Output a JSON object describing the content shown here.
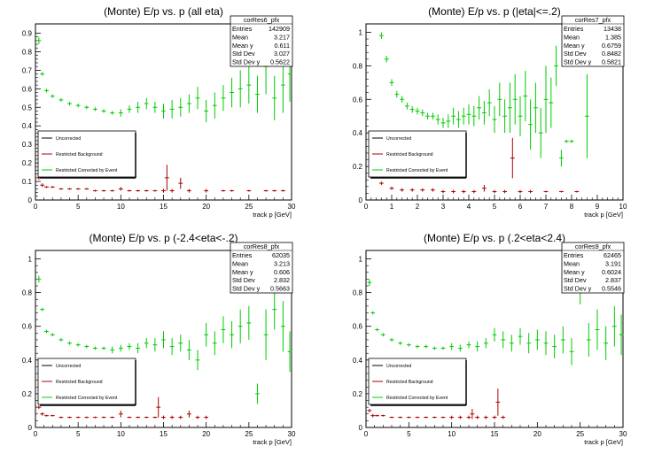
{
  "chart_data": [
    {
      "type": "scatter",
      "title": "(Monte) E/p vs. p (all eta)",
      "xlabel": "track p [GeV]",
      "xlim": [
        0,
        30
      ],
      "ylim": [
        0,
        0.95
      ],
      "xticks": [
        0,
        5,
        10,
        15,
        20,
        25,
        30
      ],
      "yticks": [
        0,
        0.1,
        0.2,
        0.3,
        0.4,
        0.5,
        0.6,
        0.7,
        0.8,
        0.9
      ],
      "ytick_labels": [
        "0",
        "0.1",
        "0.2",
        "0.3",
        "0.4",
        "0.5",
        "0.6",
        "0.7",
        "0.8",
        "0.9"
      ],
      "stats": {
        "name": "corRes6_pfx",
        "rows": [
          {
            "label": "Entries",
            "value": "142909"
          },
          {
            "label": "Mean",
            "value": "3.217"
          },
          {
            "label": "Mean y",
            "value": "0.611"
          },
          {
            "label": "Std Dev",
            "value": "3.027"
          },
          {
            "label": "Std Dev y",
            "value": "0.5622"
          }
        ]
      },
      "legend": [
        "Uncorrected",
        "Restricted Background",
        "Restricted Corrected by Event"
      ],
      "colors": {
        "uncorrected": "#000000",
        "background": "#aa0000",
        "corrected": "#00cc00"
      },
      "series": [
        {
          "name": "Restricted Corrected by Event",
          "color": "#00cc00",
          "x": [
            0.4,
            0.8,
            1.3,
            2.0,
            3.0,
            4.0,
            5.0,
            6.0,
            7.0,
            8.0,
            9.0,
            10.0,
            11.0,
            12.0,
            13.0,
            14.0,
            15.0,
            16.0,
            17.0,
            18.0,
            19.0,
            20.0,
            21.0,
            22.0,
            23.0,
            24.0,
            25.0,
            26.0,
            27.0,
            28.0,
            29.0,
            29.8
          ],
          "y": [
            0.86,
            0.68,
            0.59,
            0.56,
            0.54,
            0.52,
            0.51,
            0.5,
            0.49,
            0.48,
            0.47,
            0.47,
            0.49,
            0.5,
            0.52,
            0.5,
            0.48,
            0.49,
            0.5,
            0.52,
            0.55,
            0.48,
            0.51,
            0.55,
            0.58,
            0.6,
            0.62,
            0.57,
            0.72,
            0.55,
            0.62,
            0.68
          ],
          "err": [
            0.02,
            0.01,
            0.01,
            0.01,
            0.01,
            0.01,
            0.01,
            0.01,
            0.01,
            0.01,
            0.01,
            0.02,
            0.02,
            0.03,
            0.03,
            0.03,
            0.04,
            0.05,
            0.05,
            0.05,
            0.06,
            0.06,
            0.07,
            0.07,
            0.08,
            0.1,
            0.1,
            0.1,
            0.15,
            0.12,
            0.15,
            0.15
          ]
        },
        {
          "name": "Restricted Background",
          "color": "#aa0000",
          "x": [
            0.4,
            0.8,
            1.3,
            2.0,
            3.0,
            4.0,
            5.0,
            6.0,
            7.0,
            8.0,
            9.0,
            10.0,
            11.0,
            12.0,
            13.0,
            14.0,
            15.0,
            15.4,
            16.0,
            17.0,
            18.0,
            20.0,
            22.0,
            23.0,
            25.0,
            27.0,
            28.0,
            29.0
          ],
          "y": [
            0.12,
            0.08,
            0.07,
            0.07,
            0.06,
            0.06,
            0.06,
            0.06,
            0.05,
            0.05,
            0.05,
            0.06,
            0.05,
            0.05,
            0.05,
            0.05,
            0.05,
            0.12,
            0.05,
            0.09,
            0.05,
            0.05,
            0.05,
            0.05,
            0.05,
            0.05,
            0.05,
            0.05
          ],
          "err": [
            0.01,
            0.01,
            0.005,
            0.005,
            0.005,
            0.005,
            0.005,
            0.005,
            0.005,
            0.005,
            0.005,
            0.01,
            0.005,
            0.005,
            0.005,
            0.005,
            0.01,
            0.07,
            0.01,
            0.03,
            0.01,
            0.01,
            0.005,
            0.005,
            0.005,
            0.005,
            0.005,
            0.005
          ]
        }
      ]
    },
    {
      "type": "scatter",
      "title": "(Monte) E/p vs. p (|eta|<=.2)",
      "xlabel": "track p [GeV]",
      "xlim": [
        0,
        10
      ],
      "ylim": [
        0,
        1.05
      ],
      "xticks": [
        0,
        1,
        2,
        3,
        4,
        5,
        6,
        7,
        8,
        9,
        10
      ],
      "yticks": [
        0,
        0.2,
        0.4,
        0.6,
        0.8,
        1.0
      ],
      "ytick_labels": [
        "0",
        "0.2",
        "0.4",
        "0.6",
        "0.8",
        "1"
      ],
      "stats": {
        "name": "corRes7_pfx",
        "rows": [
          {
            "label": "Entries",
            "value": "13438"
          },
          {
            "label": "Mean",
            "value": "1.385"
          },
          {
            "label": "Mean y",
            "value": "0.6759"
          },
          {
            "label": "Std Dev",
            "value": "0.8482"
          },
          {
            "label": "Std Dev y",
            "value": "0.5821"
          }
        ]
      },
      "legend": [
        "Uncorrected",
        "Restricted Background",
        "Restricted Corrected by Event"
      ],
      "colors": {
        "uncorrected": "#000000",
        "background": "#aa0000",
        "corrected": "#00cc00"
      },
      "series": [
        {
          "name": "Restricted Corrected by Event",
          "color": "#00cc00",
          "x": [
            0.6,
            0.8,
            1.0,
            1.2,
            1.4,
            1.6,
            1.8,
            2.0,
            2.2,
            2.4,
            2.6,
            2.8,
            3.0,
            3.2,
            3.4,
            3.6,
            3.8,
            4.0,
            4.2,
            4.4,
            4.6,
            4.8,
            5.0,
            5.2,
            5.4,
            5.6,
            5.8,
            6.0,
            6.2,
            6.4,
            6.6,
            6.8,
            7.0,
            7.2,
            7.4,
            7.6,
            7.8,
            8.0,
            8.6
          ],
          "y": [
            0.98,
            0.84,
            0.7,
            0.63,
            0.6,
            0.56,
            0.54,
            0.53,
            0.52,
            0.5,
            0.5,
            0.48,
            0.46,
            0.47,
            0.5,
            0.48,
            0.5,
            0.51,
            0.5,
            0.55,
            0.52,
            0.58,
            0.48,
            0.6,
            0.5,
            0.55,
            0.6,
            0.5,
            0.62,
            0.45,
            0.55,
            0.4,
            0.6,
            0.58,
            0.8,
            0.25,
            0.35,
            0.35,
            0.5
          ],
          "err": [
            0.02,
            0.02,
            0.02,
            0.02,
            0.02,
            0.02,
            0.02,
            0.02,
            0.02,
            0.02,
            0.02,
            0.03,
            0.03,
            0.04,
            0.05,
            0.05,
            0.05,
            0.06,
            0.06,
            0.07,
            0.07,
            0.08,
            0.08,
            0.1,
            0.1,
            0.15,
            0.15,
            0.12,
            0.15,
            0.15,
            0.15,
            0.15,
            0.2,
            0.15,
            0.12,
            0.05,
            0.01,
            0.01,
            0.25
          ]
        },
        {
          "name": "Restricted Background",
          "color": "#aa0000",
          "x": [
            0.6,
            1.0,
            1.4,
            1.8,
            2.2,
            2.6,
            3.0,
            3.4,
            3.8,
            4.2,
            4.6,
            5.0,
            5.4,
            5.7,
            6.0,
            6.4,
            7.0,
            7.6,
            8.2
          ],
          "y": [
            0.1,
            0.07,
            0.06,
            0.06,
            0.06,
            0.06,
            0.05,
            0.05,
            0.05,
            0.05,
            0.07,
            0.05,
            0.05,
            0.25,
            0.05,
            0.05,
            0.05,
            0.05,
            0.05
          ],
          "err": [
            0.01,
            0.01,
            0.01,
            0.01,
            0.01,
            0.01,
            0.01,
            0.01,
            0.01,
            0.01,
            0.02,
            0.01,
            0.01,
            0.12,
            0.01,
            0.01,
            0.005,
            0.005,
            0.005
          ]
        }
      ]
    },
    {
      "type": "scatter",
      "title": "(Monte) E/p vs. p (-2.4<eta<-.2)",
      "xlabel": "track p [GeV]",
      "xlim": [
        0,
        30
      ],
      "ylim": [
        0,
        1.05
      ],
      "xticks": [
        0,
        5,
        10,
        15,
        20,
        25,
        30
      ],
      "yticks": [
        0,
        0.2,
        0.4,
        0.6,
        0.8,
        1.0
      ],
      "ytick_labels": [
        "0",
        "0.2",
        "0.4",
        "0.6",
        "0.8",
        "1"
      ],
      "stats": {
        "name": "corRes8_pfx",
        "rows": [
          {
            "label": "Entries",
            "value": "62035"
          },
          {
            "label": "Mean",
            "value": "3.213"
          },
          {
            "label": "Mean y",
            "value": "0.606"
          },
          {
            "label": "Std Dev",
            "value": "2.832"
          },
          {
            "label": "Std Dev y",
            "value": "0.5663"
          }
        ]
      },
      "legend": [
        "Uncorrected",
        "Restricted Background",
        "Restricted Corrected by Event"
      ],
      "colors": {
        "uncorrected": "#000000",
        "background": "#aa0000",
        "corrected": "#00cc00"
      },
      "series": [
        {
          "name": "Restricted Corrected by Event",
          "color": "#00cc00",
          "x": [
            0.4,
            0.8,
            1.3,
            2.0,
            3.0,
            4.0,
            5.0,
            6.0,
            7.0,
            8.0,
            9.0,
            10.0,
            11.0,
            12.0,
            13.0,
            14.0,
            15.0,
            16.0,
            17.0,
            18.0,
            19.0,
            20.0,
            21.0,
            22.0,
            23.0,
            24.0,
            25.0,
            26.0,
            27.0,
            28.0,
            29.0,
            29.8
          ],
          "y": [
            0.88,
            0.7,
            0.57,
            0.55,
            0.52,
            0.5,
            0.49,
            0.48,
            0.47,
            0.47,
            0.46,
            0.47,
            0.48,
            0.47,
            0.5,
            0.49,
            0.52,
            0.48,
            0.5,
            0.46,
            0.4,
            0.55,
            0.5,
            0.58,
            0.55,
            0.6,
            0.62,
            0.2,
            0.55,
            0.7,
            0.6,
            0.45
          ],
          "err": [
            0.02,
            0.01,
            0.01,
            0.01,
            0.01,
            0.01,
            0.01,
            0.01,
            0.01,
            0.01,
            0.02,
            0.02,
            0.02,
            0.03,
            0.03,
            0.04,
            0.05,
            0.05,
            0.05,
            0.06,
            0.06,
            0.07,
            0.07,
            0.08,
            0.08,
            0.1,
            0.1,
            0.06,
            0.15,
            0.12,
            0.15,
            0.12
          ]
        },
        {
          "name": "Restricted Background",
          "color": "#aa0000",
          "x": [
            0.4,
            0.8,
            1.3,
            2.0,
            3.0,
            4.0,
            5.0,
            6.0,
            7.0,
            8.0,
            9.0,
            10.0,
            11.0,
            12.0,
            13.0,
            14.0,
            14.4,
            15.0,
            16.0,
            17.0,
            18.0,
            19.0,
            20.0
          ],
          "y": [
            0.12,
            0.08,
            0.07,
            0.07,
            0.06,
            0.06,
            0.06,
            0.06,
            0.06,
            0.06,
            0.06,
            0.08,
            0.06,
            0.06,
            0.06,
            0.06,
            0.12,
            0.06,
            0.06,
            0.06,
            0.08,
            0.06,
            0.06
          ],
          "err": [
            0.01,
            0.01,
            0.005,
            0.005,
            0.005,
            0.005,
            0.005,
            0.005,
            0.005,
            0.005,
            0.005,
            0.02,
            0.005,
            0.005,
            0.005,
            0.005,
            0.06,
            0.01,
            0.01,
            0.01,
            0.02,
            0.01,
            0.01
          ]
        }
      ]
    },
    {
      "type": "scatter",
      "title": "(Monte) E/p vs. p (.2<eta<2.4)",
      "xlabel": "track p [GeV]",
      "xlim": [
        0,
        30
      ],
      "ylim": [
        0,
        1.05
      ],
      "xticks": [
        0,
        5,
        10,
        15,
        20,
        25,
        30
      ],
      "yticks": [
        0,
        0.2,
        0.4,
        0.6,
        0.8,
        1.0
      ],
      "ytick_labels": [
        "0",
        "0.2",
        "0.4",
        "0.6",
        "0.8",
        "1"
      ],
      "stats": {
        "name": "corRes9_pfx",
        "rows": [
          {
            "label": "Entries",
            "value": "62465"
          },
          {
            "label": "Mean",
            "value": "3.191"
          },
          {
            "label": "Mean y",
            "value": "0.6024"
          },
          {
            "label": "Std Dev",
            "value": "2.837"
          },
          {
            "label": "Std Dev y",
            "value": "0.5546"
          }
        ]
      },
      "legend": [
        "Uncorrected",
        "Restricted Background",
        "Restricted Corrected by Event"
      ],
      "colors": {
        "uncorrected": "#000000",
        "background": "#aa0000",
        "corrected": "#00cc00"
      },
      "series": [
        {
          "name": "Restricted Corrected by Event",
          "color": "#00cc00",
          "x": [
            0.4,
            0.8,
            1.3,
            2.0,
            3.0,
            4.0,
            5.0,
            6.0,
            7.0,
            8.0,
            9.0,
            10.0,
            11.0,
            12.0,
            13.0,
            14.0,
            15.0,
            16.0,
            17.0,
            18.0,
            19.0,
            20.0,
            21.0,
            22.0,
            23.0,
            24.0,
            25.0,
            26.0,
            27.0,
            28.0,
            29.0,
            29.8
          ],
          "y": [
            0.86,
            0.68,
            0.58,
            0.55,
            0.52,
            0.5,
            0.49,
            0.48,
            0.48,
            0.47,
            0.47,
            0.48,
            0.47,
            0.49,
            0.48,
            0.5,
            0.55,
            0.52,
            0.5,
            0.54,
            0.5,
            0.52,
            0.5,
            0.48,
            0.52,
            0.45,
            0.85,
            0.52,
            0.58,
            0.5,
            0.6,
            0.55
          ],
          "err": [
            0.02,
            0.01,
            0.01,
            0.01,
            0.01,
            0.01,
            0.01,
            0.01,
            0.01,
            0.01,
            0.01,
            0.02,
            0.02,
            0.02,
            0.03,
            0.03,
            0.04,
            0.05,
            0.05,
            0.05,
            0.06,
            0.06,
            0.07,
            0.07,
            0.08,
            0.08,
            0.12,
            0.1,
            0.12,
            0.1,
            0.12,
            0.12
          ]
        },
        {
          "name": "Restricted Background",
          "color": "#aa0000",
          "x": [
            0.4,
            0.8,
            1.3,
            2.0,
            3.0,
            4.0,
            5.0,
            6.0,
            7.0,
            8.0,
            9.0,
            10.0,
            11.0,
            12.0,
            12.4,
            13.0,
            14.0,
            15.0,
            15.4,
            16.0
          ],
          "y": [
            0.1,
            0.07,
            0.07,
            0.07,
            0.06,
            0.06,
            0.06,
            0.06,
            0.06,
            0.06,
            0.06,
            0.06,
            0.06,
            0.06,
            0.08,
            0.06,
            0.06,
            0.06,
            0.15,
            0.06
          ],
          "err": [
            0.01,
            0.01,
            0.005,
            0.005,
            0.005,
            0.005,
            0.005,
            0.005,
            0.005,
            0.005,
            0.005,
            0.01,
            0.01,
            0.01,
            0.03,
            0.01,
            0.01,
            0.01,
            0.08,
            0.01
          ]
        }
      ]
    }
  ]
}
